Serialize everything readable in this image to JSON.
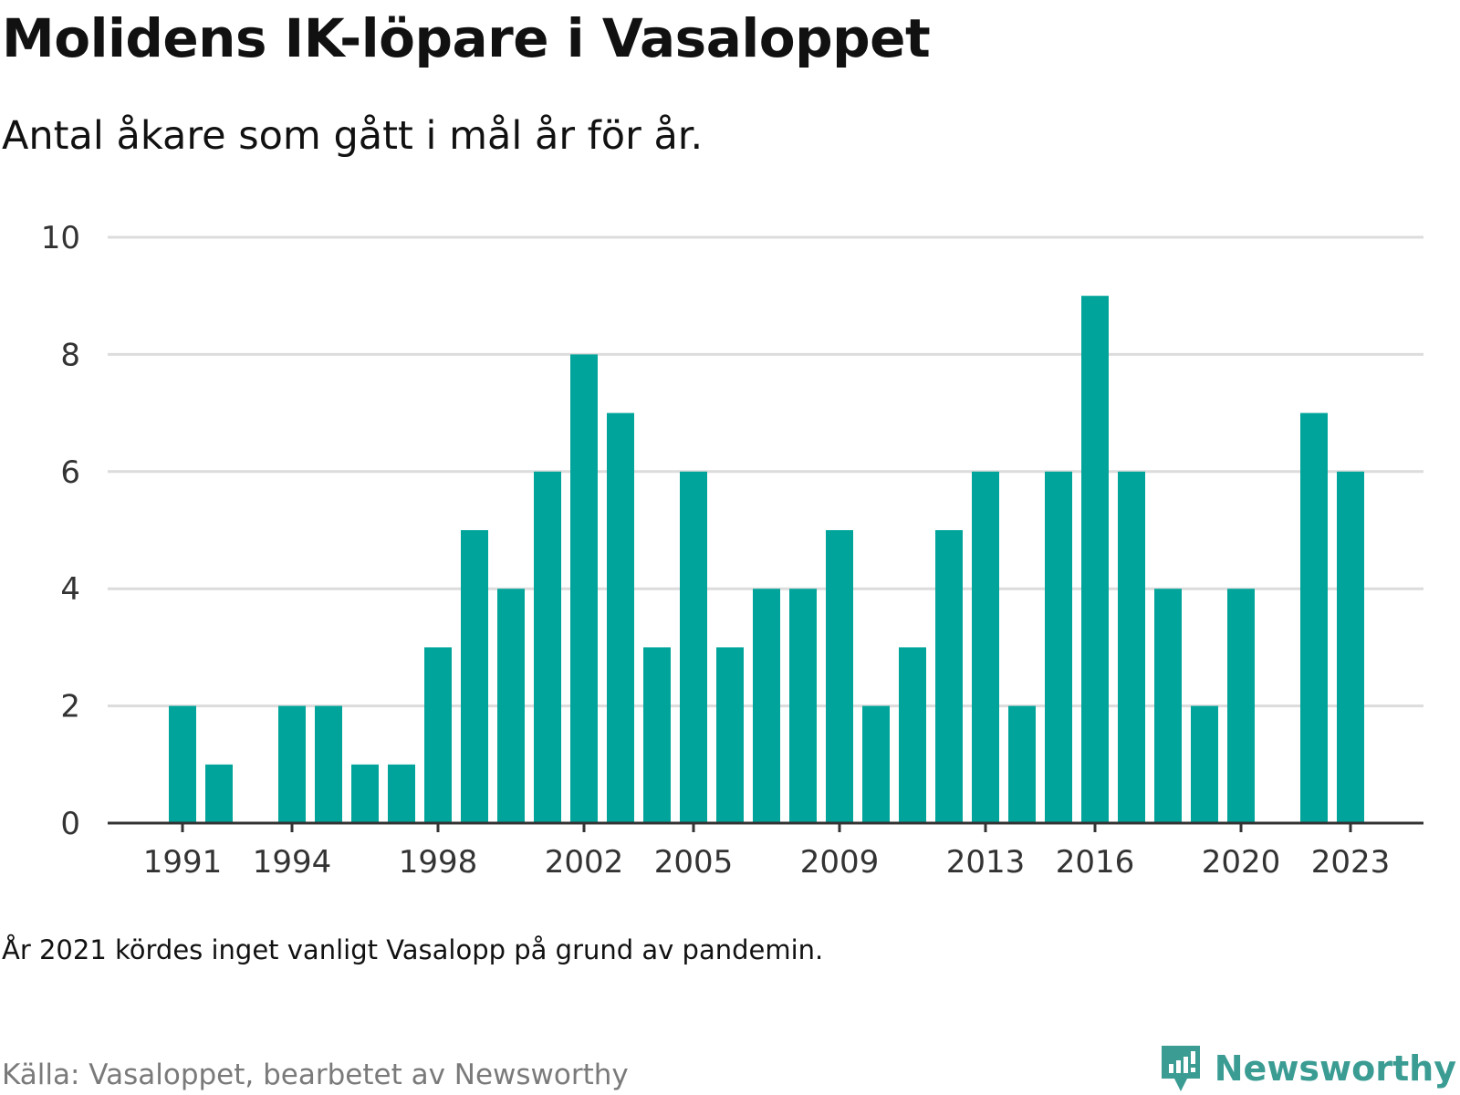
{
  "title": "Molidens IK-löpare i Vasaloppet",
  "subtitle": "Antal åkare som gått i mål år för år.",
  "note": "År 2021 kördes inget vanligt Vasalopp på grund av pandemin.",
  "source": "Källa: Vasaloppet, bearbetet av Newsworthy",
  "brand": {
    "name": "Newsworthy",
    "color": "#3a9c93",
    "icon": "newsworthy-logo-icon"
  },
  "chart_data": {
    "type": "bar",
    "title": "Molidens IK-löpare i Vasaloppet",
    "subtitle": "Antal åkare som gått i mål år för år.",
    "xlabel": "",
    "ylabel": "",
    "x": [
      1991,
      1992,
      1993,
      1994,
      1995,
      1996,
      1997,
      1998,
      1999,
      2000,
      2001,
      2002,
      2003,
      2004,
      2005,
      2006,
      2007,
      2008,
      2009,
      2010,
      2011,
      2012,
      2013,
      2014,
      2015,
      2016,
      2017,
      2018,
      2019,
      2020,
      2021,
      2022,
      2023
    ],
    "values": [
      2,
      1,
      0,
      2,
      2,
      1,
      1,
      3,
      5,
      4,
      6,
      8,
      7,
      3,
      6,
      3,
      4,
      4,
      5,
      2,
      3,
      5,
      6,
      2,
      6,
      9,
      6,
      4,
      2,
      4,
      0,
      7,
      6
    ],
    "xticks": [
      1991,
      1994,
      1998,
      2002,
      2005,
      2009,
      2013,
      2016,
      2020,
      2023
    ],
    "yticks": [
      0,
      2,
      4,
      6,
      8,
      10
    ],
    "ylim": [
      0,
      10
    ],
    "grid": true,
    "bar_color": "#00a49a",
    "grid_color": "#dcdcdc",
    "axis_color": "#333333"
  }
}
